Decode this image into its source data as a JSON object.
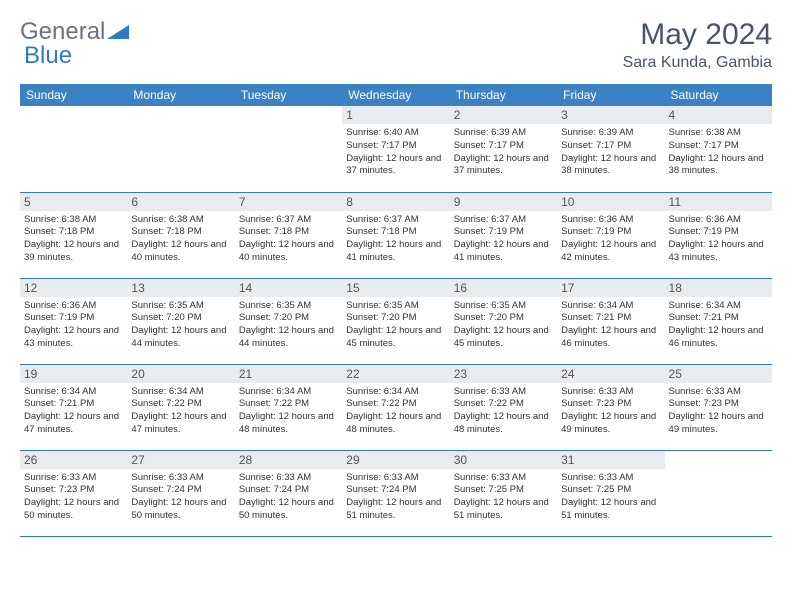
{
  "brand": {
    "part1": "General",
    "part2": "Blue"
  },
  "title": "May 2024",
  "location": "Sara Kunda, Gambia",
  "colors": {
    "header_bg": "#3b82c4",
    "header_text": "#ffffff",
    "daynum_bg": "#e8ecef",
    "border": "#2f7bbf",
    "brand_gray": "#6b7280",
    "brand_blue": "#2f7bbf",
    "title_color": "#4a5568"
  },
  "weekdays": [
    "Sunday",
    "Monday",
    "Tuesday",
    "Wednesday",
    "Thursday",
    "Friday",
    "Saturday"
  ],
  "weeks": [
    [
      null,
      null,
      null,
      {
        "d": "1",
        "sr": "6:40 AM",
        "ss": "7:17 PM",
        "dl": "12 hours and 37 minutes."
      },
      {
        "d": "2",
        "sr": "6:39 AM",
        "ss": "7:17 PM",
        "dl": "12 hours and 37 minutes."
      },
      {
        "d": "3",
        "sr": "6:39 AM",
        "ss": "7:17 PM",
        "dl": "12 hours and 38 minutes."
      },
      {
        "d": "4",
        "sr": "6:38 AM",
        "ss": "7:17 PM",
        "dl": "12 hours and 38 minutes."
      }
    ],
    [
      {
        "d": "5",
        "sr": "6:38 AM",
        "ss": "7:18 PM",
        "dl": "12 hours and 39 minutes."
      },
      {
        "d": "6",
        "sr": "6:38 AM",
        "ss": "7:18 PM",
        "dl": "12 hours and 40 minutes."
      },
      {
        "d": "7",
        "sr": "6:37 AM",
        "ss": "7:18 PM",
        "dl": "12 hours and 40 minutes."
      },
      {
        "d": "8",
        "sr": "6:37 AM",
        "ss": "7:18 PM",
        "dl": "12 hours and 41 minutes."
      },
      {
        "d": "9",
        "sr": "6:37 AM",
        "ss": "7:19 PM",
        "dl": "12 hours and 41 minutes."
      },
      {
        "d": "10",
        "sr": "6:36 AM",
        "ss": "7:19 PM",
        "dl": "12 hours and 42 minutes."
      },
      {
        "d": "11",
        "sr": "6:36 AM",
        "ss": "7:19 PM",
        "dl": "12 hours and 43 minutes."
      }
    ],
    [
      {
        "d": "12",
        "sr": "6:36 AM",
        "ss": "7:19 PM",
        "dl": "12 hours and 43 minutes."
      },
      {
        "d": "13",
        "sr": "6:35 AM",
        "ss": "7:20 PM",
        "dl": "12 hours and 44 minutes."
      },
      {
        "d": "14",
        "sr": "6:35 AM",
        "ss": "7:20 PM",
        "dl": "12 hours and 44 minutes."
      },
      {
        "d": "15",
        "sr": "6:35 AM",
        "ss": "7:20 PM",
        "dl": "12 hours and 45 minutes."
      },
      {
        "d": "16",
        "sr": "6:35 AM",
        "ss": "7:20 PM",
        "dl": "12 hours and 45 minutes."
      },
      {
        "d": "17",
        "sr": "6:34 AM",
        "ss": "7:21 PM",
        "dl": "12 hours and 46 minutes."
      },
      {
        "d": "18",
        "sr": "6:34 AM",
        "ss": "7:21 PM",
        "dl": "12 hours and 46 minutes."
      }
    ],
    [
      {
        "d": "19",
        "sr": "6:34 AM",
        "ss": "7:21 PM",
        "dl": "12 hours and 47 minutes."
      },
      {
        "d": "20",
        "sr": "6:34 AM",
        "ss": "7:22 PM",
        "dl": "12 hours and 47 minutes."
      },
      {
        "d": "21",
        "sr": "6:34 AM",
        "ss": "7:22 PM",
        "dl": "12 hours and 48 minutes."
      },
      {
        "d": "22",
        "sr": "6:34 AM",
        "ss": "7:22 PM",
        "dl": "12 hours and 48 minutes."
      },
      {
        "d": "23",
        "sr": "6:33 AM",
        "ss": "7:22 PM",
        "dl": "12 hours and 48 minutes."
      },
      {
        "d": "24",
        "sr": "6:33 AM",
        "ss": "7:23 PM",
        "dl": "12 hours and 49 minutes."
      },
      {
        "d": "25",
        "sr": "6:33 AM",
        "ss": "7:23 PM",
        "dl": "12 hours and 49 minutes."
      }
    ],
    [
      {
        "d": "26",
        "sr": "6:33 AM",
        "ss": "7:23 PM",
        "dl": "12 hours and 50 minutes."
      },
      {
        "d": "27",
        "sr": "6:33 AM",
        "ss": "7:24 PM",
        "dl": "12 hours and 50 minutes."
      },
      {
        "d": "28",
        "sr": "6:33 AM",
        "ss": "7:24 PM",
        "dl": "12 hours and 50 minutes."
      },
      {
        "d": "29",
        "sr": "6:33 AM",
        "ss": "7:24 PM",
        "dl": "12 hours and 51 minutes."
      },
      {
        "d": "30",
        "sr": "6:33 AM",
        "ss": "7:25 PM",
        "dl": "12 hours and 51 minutes."
      },
      {
        "d": "31",
        "sr": "6:33 AM",
        "ss": "7:25 PM",
        "dl": "12 hours and 51 minutes."
      },
      null
    ]
  ],
  "labels": {
    "sunrise": "Sunrise:",
    "sunset": "Sunset:",
    "daylight": "Daylight:"
  }
}
